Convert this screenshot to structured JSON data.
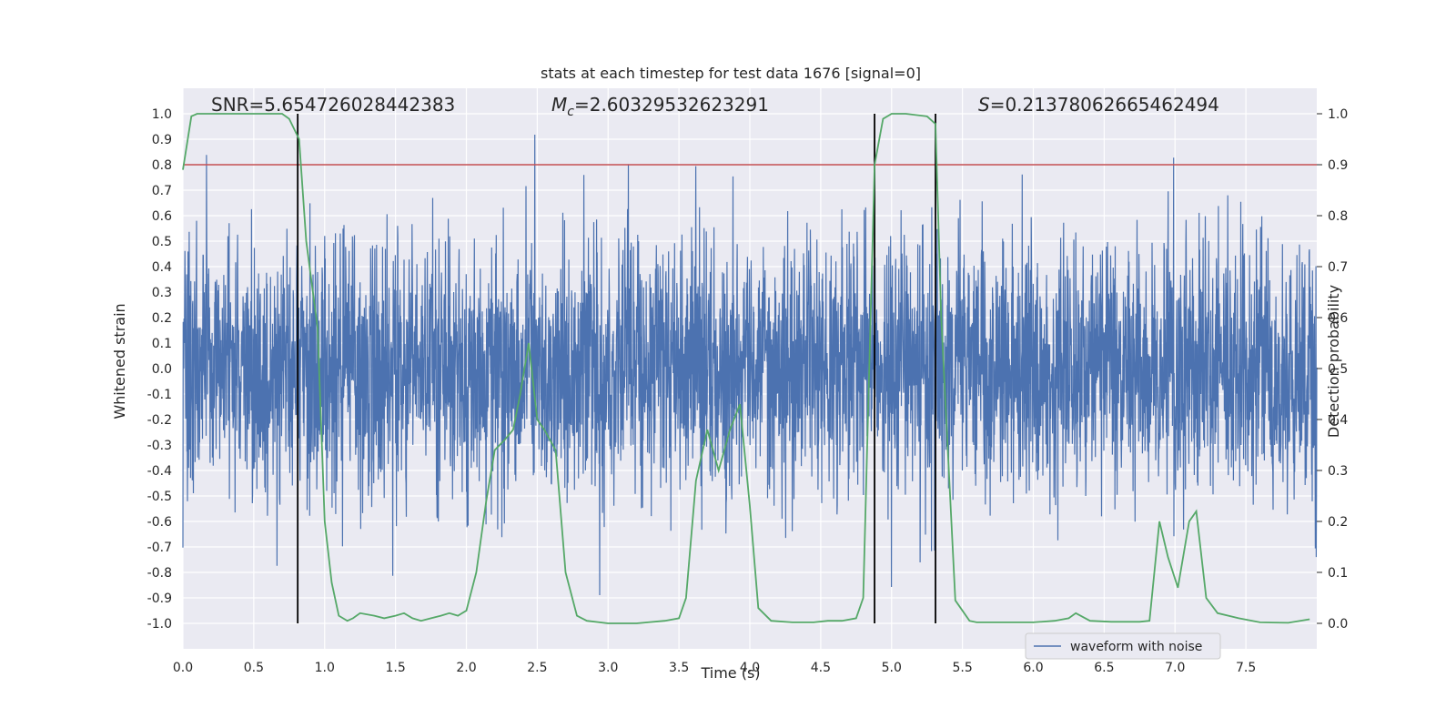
{
  "chart_data": {
    "type": "line",
    "title": "stats at each timestep for test data 1676 [signal=0]",
    "xlabel": "Time (s)",
    "ylabel": "Whitened strain",
    "y2label": "Detection probability",
    "xlim": [
      0,
      8
    ],
    "ylim": [
      -1.1,
      1.1
    ],
    "y2lim": [
      -0.05,
      1.05
    ],
    "x_ticks": [
      0.0,
      0.5,
      1.0,
      1.5,
      2.0,
      2.5,
      3.0,
      3.5,
      4.0,
      4.5,
      5.0,
      5.5,
      6.0,
      6.5,
      7.0,
      7.5
    ],
    "x_tick_labels": [
      "0.0",
      "0.5",
      "1.0",
      "1.5",
      "2.0",
      "2.5",
      "3.0",
      "3.5",
      "4.0",
      "4.5",
      "5.0",
      "5.5",
      "6.0",
      "6.5",
      "7.0",
      "7.5"
    ],
    "y_ticks": [
      1.0,
      0.9,
      0.8,
      0.7,
      0.6,
      0.5,
      0.4,
      0.3,
      0.2,
      0.1,
      0.0,
      -0.1,
      -0.2,
      -0.3,
      -0.4,
      -0.5,
      -0.6,
      -0.7,
      -0.8,
      -0.9,
      -1.0
    ],
    "y_tick_labels": [
      "1.0",
      "0.9",
      "0.8",
      "0.7",
      "0.6",
      "0.5",
      "0.4",
      "0.3",
      "0.2",
      "0.1",
      "0.0",
      "-0.1",
      "-0.2",
      "-0.3",
      "-0.4",
      "-0.5",
      "-0.6",
      "-0.7",
      "-0.8",
      "-0.9",
      "-1.0"
    ],
    "y2_ticks": [
      1.0,
      0.9,
      0.8,
      0.7,
      0.6,
      0.5,
      0.4,
      0.3,
      0.2,
      0.1,
      0.0
    ],
    "y2_tick_labels": [
      "1.0",
      "0.9",
      "0.8",
      "0.7",
      "0.6",
      "0.5",
      "0.4",
      "0.3",
      "0.2",
      "0.1",
      "0.0"
    ],
    "grid": true,
    "legend": {
      "placement": "lower-right",
      "entries": [
        "waveform with noise"
      ]
    },
    "annotations": {
      "snr": "SNR=5.654726028442383",
      "mc_symbol": "M",
      "mc_sub": "c",
      "mc_value": "=2.60329532623291",
      "s_symbol": "S",
      "s_value": "=0.21378062665462494"
    },
    "threshold": 0.8,
    "vertical_lines": [
      0.81,
      4.88,
      5.31
    ],
    "waveform_envelope": {
      "min": -1.0,
      "max": 1.0,
      "typical_amplitude": 0.45
    },
    "probability_series": {
      "x": [
        0.0,
        0.06,
        0.1,
        0.2,
        0.3,
        0.4,
        0.5,
        0.6,
        0.7,
        0.75,
        0.82,
        0.87,
        0.95,
        1.0,
        1.05,
        1.1,
        1.16,
        1.2,
        1.25,
        1.35,
        1.42,
        1.5,
        1.56,
        1.62,
        1.68,
        1.75,
        1.82,
        1.88,
        1.94,
        2.0,
        2.07,
        2.14,
        2.2,
        2.27,
        2.33,
        2.38,
        2.44,
        2.5,
        2.55,
        2.63,
        2.7,
        2.78,
        2.85,
        3.0,
        3.2,
        3.4,
        3.5,
        3.55,
        3.62,
        3.7,
        3.78,
        3.86,
        3.93,
        4.0,
        4.06,
        4.15,
        4.3,
        4.45,
        4.55,
        4.65,
        4.75,
        4.8,
        4.88,
        4.94,
        5.0,
        5.1,
        5.25,
        5.31,
        5.35,
        5.45,
        5.55,
        5.6,
        5.75,
        6.0,
        6.15,
        6.25,
        6.3,
        6.4,
        6.55,
        6.75,
        6.82,
        6.89,
        6.95,
        7.02,
        7.1,
        7.15,
        7.22,
        7.3,
        7.45,
        7.6,
        7.8,
        7.95
      ],
      "y": [
        0.89,
        0.995,
        1.0,
        1.0,
        1.0,
        1.0,
        1.0,
        1.0,
        1.0,
        0.99,
        0.95,
        0.75,
        0.58,
        0.2,
        0.08,
        0.015,
        0.005,
        0.01,
        0.02,
        0.015,
        0.01,
        0.015,
        0.02,
        0.01,
        0.005,
        0.01,
        0.015,
        0.02,
        0.015,
        0.025,
        0.1,
        0.24,
        0.34,
        0.36,
        0.38,
        0.45,
        0.55,
        0.4,
        0.38,
        0.34,
        0.1,
        0.015,
        0.005,
        0.0,
        0.0,
        0.005,
        0.01,
        0.05,
        0.28,
        0.38,
        0.3,
        0.38,
        0.43,
        0.23,
        0.03,
        0.005,
        0.002,
        0.002,
        0.005,
        0.005,
        0.01,
        0.05,
        0.9,
        0.99,
        1.0,
        1.0,
        0.995,
        0.98,
        0.6,
        0.045,
        0.005,
        0.002,
        0.002,
        0.002,
        0.005,
        0.01,
        0.02,
        0.005,
        0.003,
        0.003,
        0.005,
        0.2,
        0.13,
        0.07,
        0.2,
        0.22,
        0.05,
        0.02,
        0.01,
        0.002,
        0.001,
        0.008
      ]
    },
    "colors": {
      "background": "#eaeaf2",
      "grid": "#ffffff",
      "waveform": "#4c72b0",
      "probability": "#55a868",
      "threshold": "#c44e52",
      "vlines": "#000000"
    }
  }
}
